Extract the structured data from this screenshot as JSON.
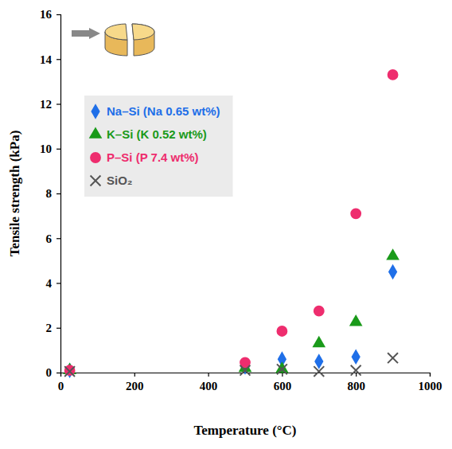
{
  "chart_data": {
    "type": "scatter",
    "x_label": "Temperature (°C)",
    "y_label": "Tensile strength (kPa)",
    "x": [
      25,
      500,
      600,
      700,
      800,
      900
    ],
    "xlim": [
      0,
      1000
    ],
    "xticks": [
      0,
      200,
      400,
      600,
      800,
      1000
    ],
    "ylim": [
      0,
      16
    ],
    "yticks": [
      0,
      2,
      4,
      6,
      8,
      10,
      12,
      14,
      16
    ],
    "legend": "upper left",
    "series": [
      {
        "name": "Na–Si (Na 0.65 wt%)",
        "color": "#1f6fe8",
        "marker": "diamond",
        "values": [
          0.1,
          0.25,
          0.6,
          0.5,
          0.7,
          4.5
        ]
      },
      {
        "name": "K–Si (K 0.52 wt%)",
        "color": "#1a9a1a",
        "marker": "triangle",
        "values": [
          0.1,
          0.2,
          0.15,
          1.3,
          2.25,
          5.2
        ]
      },
      {
        "name": "P–Si (P 7.4 wt%)",
        "color": "#ee2d6e",
        "marker": "circle",
        "values": [
          0.1,
          0.45,
          1.85,
          2.75,
          7.1,
          13.3
        ]
      },
      {
        "name": "SiO₂",
        "color": "#555555",
        "marker": "x",
        "values": [
          0.05,
          0.1,
          0.15,
          0.05,
          0.1,
          0.65
        ]
      }
    ]
  }
}
